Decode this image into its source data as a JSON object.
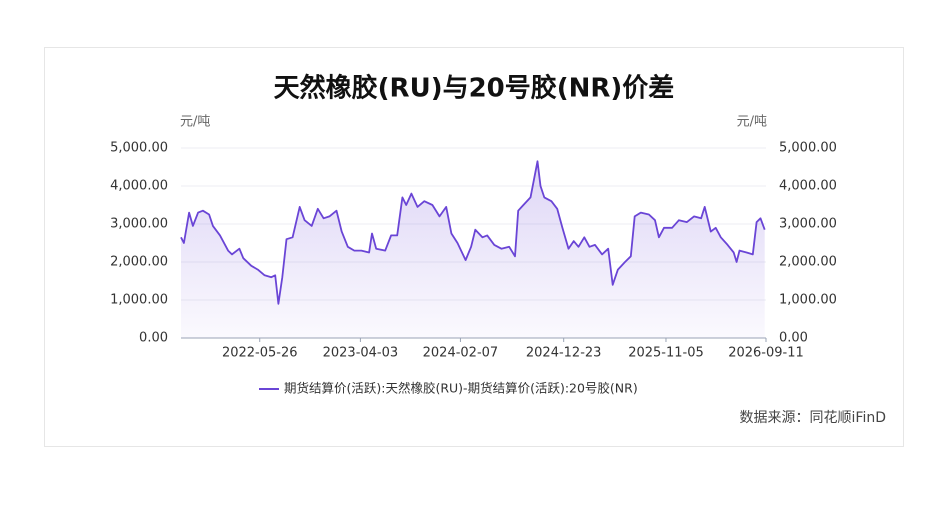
{
  "chart_data": {
    "type": "line",
    "title": "天然橡胶(RU)与20号胶(NR)价差",
    "y_unit": "元/吨",
    "y2_unit": "元/吨",
    "source": "数据来源：同花顺iFinD",
    "x": [
      "2021-09-24",
      "2021-10-03",
      "2021-10-19",
      "2021-10-31",
      "2021-11-16",
      "2021-12-01",
      "2021-12-20",
      "2022-01-01",
      "2022-01-23",
      "2022-02-17",
      "2022-03-01",
      "2022-03-24",
      "2022-04-05",
      "2022-04-30",
      "2022-05-20",
      "2022-06-10",
      "2022-07-01",
      "2022-07-13",
      "2022-07-23",
      "2022-08-04",
      "2022-08-17",
      "2022-09-05",
      "2022-09-27",
      "2022-10-12",
      "2022-11-03",
      "2022-11-22",
      "2022-12-10",
      "2022-12-28",
      "2023-01-19",
      "2023-02-04",
      "2023-02-23",
      "2023-03-15",
      "2023-04-06",
      "2023-04-30",
      "2023-05-09",
      "2023-05-22",
      "2023-06-19",
      "2023-07-07",
      "2023-07-26",
      "2023-08-11",
      "2023-08-23",
      "2023-09-08",
      "2023-09-27",
      "2023-10-18",
      "2023-11-12",
      "2023-12-04",
      "2023-12-25",
      "2024-01-10",
      "2024-01-29",
      "2024-02-23",
      "2024-03-11",
      "2024-03-24",
      "2024-04-15",
      "2024-04-30",
      "2024-05-22",
      "2024-06-13",
      "2024-07-07",
      "2024-07-25",
      "2024-08-04",
      "2024-08-20",
      "2024-09-11",
      "2024-10-03",
      "2024-10-12",
      "2024-10-24",
      "2024-11-15",
      "2024-12-03",
      "2024-12-19",
      "2025-01-07",
      "2025-01-23",
      "2025-02-07",
      "2025-02-25",
      "2025-03-13",
      "2025-03-30",
      "2025-04-21",
      "2025-05-10",
      "2025-05-24",
      "2025-06-09",
      "2025-07-01",
      "2025-07-19",
      "2025-07-31",
      "2025-08-19",
      "2025-09-13",
      "2025-10-02",
      "2025-10-14",
      "2025-10-30",
      "2025-11-24",
      "2025-12-15",
      "2026-01-09",
      "2026-01-31",
      "2026-02-22",
      "2026-03-05",
      "2026-03-24",
      "2026-04-08",
      "2026-04-24",
      "2026-05-15",
      "2026-06-03",
      "2026-06-12",
      "2026-06-21",
      "2026-07-13",
      "2026-08-01",
      "2026-08-13",
      "2026-08-25",
      "2026-09-07"
    ],
    "series": [
      {
        "name": "期货结算价(活跃):天然橡胶(RU)-期货结算价(活跃):20号胶(NR)",
        "color": "#6a45d6",
        "values": [
          2650,
          2500,
          3300,
          2950,
          3300,
          3350,
          3250,
          2950,
          2700,
          2300,
          2200,
          2350,
          2100,
          1900,
          1800,
          1650,
          1600,
          1650,
          900,
          1600,
          2600,
          2650,
          3450,
          3100,
          2950,
          3400,
          3150,
          3200,
          3350,
          2800,
          2400,
          2300,
          2300,
          2250,
          2750,
          2350,
          2300,
          2700,
          2700,
          3700,
          3500,
          3800,
          3450,
          3600,
          3500,
          3200,
          3450,
          2750,
          2500,
          2050,
          2400,
          2850,
          2650,
          2700,
          2450,
          2350,
          2400,
          2150,
          3350,
          3500,
          3700,
          4650,
          4000,
          3700,
          3600,
          3400,
          2900,
          2350,
          2550,
          2400,
          2650,
          2400,
          2450,
          2200,
          2350,
          1400,
          1800,
          2000,
          2150,
          3200,
          3300,
          3250,
          3100,
          2650,
          2900,
          2900,
          3100,
          3050,
          3200,
          3150,
          3450,
          2800,
          2900,
          2650,
          2450,
          2250,
          2000,
          2300,
          2250,
          2200,
          3050,
          3150,
          2850
        ]
      }
    ],
    "xlim": [
      "2021-09-24",
      "2026-09-11"
    ],
    "xticks": [
      "2022-05-26",
      "2023-04-03",
      "2024-02-07",
      "2024-12-23",
      "2025-11-05",
      "2026-09-11"
    ],
    "ylim": [
      0,
      5000
    ],
    "yticks": [
      {
        "value": 0,
        "label": "0.00"
      },
      {
        "value": 1000,
        "label": "1,000.00"
      },
      {
        "value": 2000,
        "label": "2,000.00"
      },
      {
        "value": 3000,
        "label": "3,000.00"
      },
      {
        "value": 4000,
        "label": "4,000.00"
      },
      {
        "value": 5000,
        "label": "5,000.00"
      }
    ],
    "y2lim": [
      0,
      5000
    ],
    "y2ticks": [
      {
        "value": 0,
        "label": "0.00"
      },
      {
        "value": 1000,
        "label": "1,000.00"
      },
      {
        "value": 2000,
        "label": "2,000.00"
      },
      {
        "value": 3000,
        "label": "3,000.00"
      },
      {
        "value": 4000,
        "label": "4,000.00"
      },
      {
        "value": 5000,
        "label": "5,000.00"
      }
    ],
    "grid": true,
    "legend": "bottom"
  }
}
